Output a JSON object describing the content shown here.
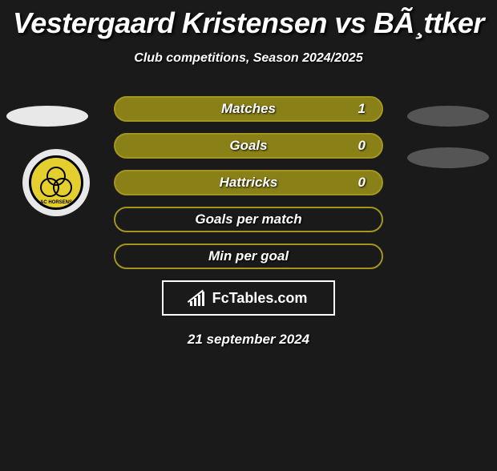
{
  "title": "Vestergaard Kristensen vs BÃ¸ttker",
  "subtitle": "Club competitions, Season 2024/2025",
  "colors": {
    "olive": "#a39520",
    "olive_fill": "#8a8018",
    "head_left": "#e8e8e8",
    "head_right": "#555555",
    "badge_bg": "#e5cf2e"
  },
  "stats": [
    {
      "label": "Matches",
      "value": "1",
      "filled": true
    },
    {
      "label": "Goals",
      "value": "0",
      "filled": true
    },
    {
      "label": "Hattricks",
      "value": "0",
      "filled": true
    },
    {
      "label": "Goals per match",
      "value": "",
      "filled": false
    },
    {
      "label": "Min per goal",
      "value": "",
      "filled": false
    }
  ],
  "club_badge": {
    "name": "AC HORSENS"
  },
  "logo": "FcTables.com",
  "date": "21 september 2024"
}
